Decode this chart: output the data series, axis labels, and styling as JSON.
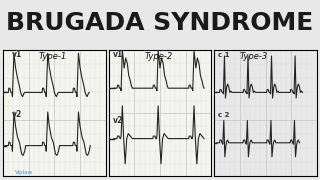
{
  "title": "BRUGADA SYNDROME",
  "title_fontsize": 18,
  "title_color": "#1a1a1a",
  "bg_color": "#e8e8e8",
  "panel_bg": "#f0f0f0",
  "grid_color_major": "#c8c8c8",
  "grid_color_minor": "#dcdcdc",
  "ecg_color": "#222222",
  "type1_label": "Type-1",
  "type2_label": "Type-2",
  "type3_label": "Type-3",
  "v1_label": "v1",
  "v2_label": "v2",
  "watermark": "Viplaw"
}
